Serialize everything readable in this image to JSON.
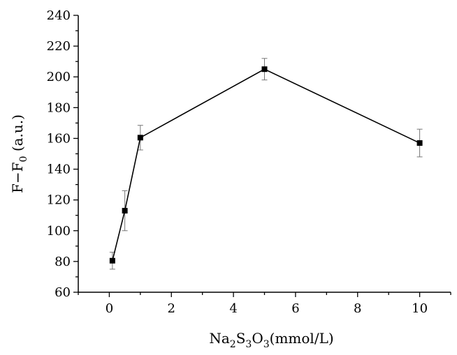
{
  "chart_data": {
    "type": "line",
    "x": [
      0.1,
      0.5,
      1,
      5,
      10
    ],
    "y": [
      80.5,
      113,
      160.5,
      205,
      157
    ],
    "error": [
      5.5,
      13,
      8,
      7,
      9
    ],
    "xlim": [
      -1,
      11
    ],
    "ylim": [
      60,
      240
    ],
    "xticks": [
      "0",
      "2",
      "4",
      "6",
      "8",
      "10"
    ],
    "yticks": [
      "60",
      "80",
      "100",
      "120",
      "140",
      "160",
      "180",
      "200",
      "220",
      "240"
    ],
    "xticks_values": [
      0,
      2,
      4,
      6,
      8,
      10
    ],
    "yticks_values": [
      60,
      80,
      100,
      120,
      140,
      160,
      180,
      200,
      220,
      240
    ],
    "xlabel": {
      "base": "Na",
      "sub1": "2",
      "mid1": "S",
      "sub2": "3",
      "mid2": "O",
      "sub3": "3",
      "tail": "(mmol/L)"
    },
    "ylabel": {
      "base": "F−F",
      "sub": "0",
      "tail": " (a.u.)"
    },
    "marker": "square",
    "grid": false,
    "series_color": "#000000",
    "errorbar_color": "#777777"
  }
}
